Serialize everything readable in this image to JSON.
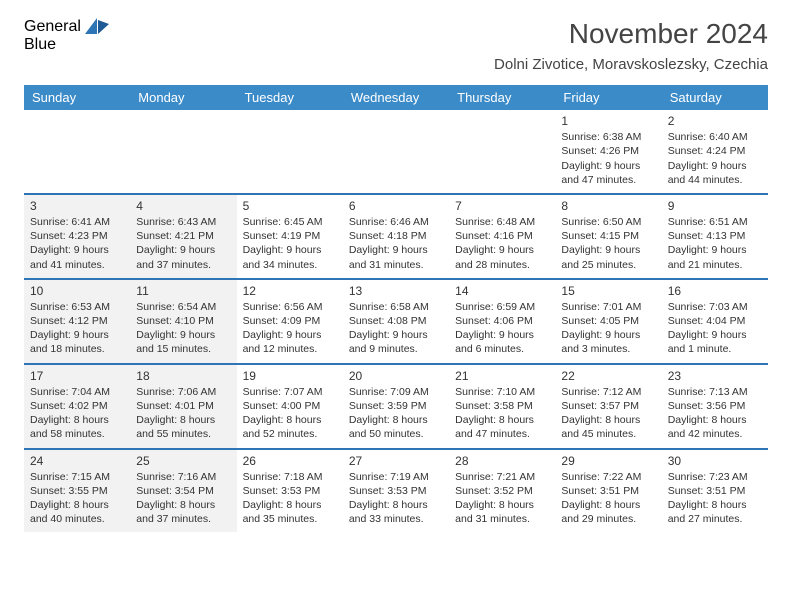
{
  "brand": {
    "line1": "General",
    "line2": "Blue"
  },
  "title": "November 2024",
  "location": "Dolni Zivotice, Moravskoslezsky, Czechia",
  "colors": {
    "header_bg": "#3b8bc9",
    "divider": "#2e75b6",
    "shade": "#f2f2f2",
    "text": "#333333",
    "brand_gray": "#555555",
    "brand_blue": "#2e75b6"
  },
  "weekdays": [
    "Sunday",
    "Monday",
    "Tuesday",
    "Wednesday",
    "Thursday",
    "Friday",
    "Saturday"
  ],
  "shaded_columns": [
    0,
    1
  ],
  "weeks": [
    [
      null,
      null,
      null,
      null,
      null,
      {
        "n": "1",
        "sunrise": "Sunrise: 6:38 AM",
        "sunset": "Sunset: 4:26 PM",
        "daylight": "Daylight: 9 hours and 47 minutes."
      },
      {
        "n": "2",
        "sunrise": "Sunrise: 6:40 AM",
        "sunset": "Sunset: 4:24 PM",
        "daylight": "Daylight: 9 hours and 44 minutes."
      }
    ],
    [
      {
        "n": "3",
        "sunrise": "Sunrise: 6:41 AM",
        "sunset": "Sunset: 4:23 PM",
        "daylight": "Daylight: 9 hours and 41 minutes."
      },
      {
        "n": "4",
        "sunrise": "Sunrise: 6:43 AM",
        "sunset": "Sunset: 4:21 PM",
        "daylight": "Daylight: 9 hours and 37 minutes."
      },
      {
        "n": "5",
        "sunrise": "Sunrise: 6:45 AM",
        "sunset": "Sunset: 4:19 PM",
        "daylight": "Daylight: 9 hours and 34 minutes."
      },
      {
        "n": "6",
        "sunrise": "Sunrise: 6:46 AM",
        "sunset": "Sunset: 4:18 PM",
        "daylight": "Daylight: 9 hours and 31 minutes."
      },
      {
        "n": "7",
        "sunrise": "Sunrise: 6:48 AM",
        "sunset": "Sunset: 4:16 PM",
        "daylight": "Daylight: 9 hours and 28 minutes."
      },
      {
        "n": "8",
        "sunrise": "Sunrise: 6:50 AM",
        "sunset": "Sunset: 4:15 PM",
        "daylight": "Daylight: 9 hours and 25 minutes."
      },
      {
        "n": "9",
        "sunrise": "Sunrise: 6:51 AM",
        "sunset": "Sunset: 4:13 PM",
        "daylight": "Daylight: 9 hours and 21 minutes."
      }
    ],
    [
      {
        "n": "10",
        "sunrise": "Sunrise: 6:53 AM",
        "sunset": "Sunset: 4:12 PM",
        "daylight": "Daylight: 9 hours and 18 minutes."
      },
      {
        "n": "11",
        "sunrise": "Sunrise: 6:54 AM",
        "sunset": "Sunset: 4:10 PM",
        "daylight": "Daylight: 9 hours and 15 minutes."
      },
      {
        "n": "12",
        "sunrise": "Sunrise: 6:56 AM",
        "sunset": "Sunset: 4:09 PM",
        "daylight": "Daylight: 9 hours and 12 minutes."
      },
      {
        "n": "13",
        "sunrise": "Sunrise: 6:58 AM",
        "sunset": "Sunset: 4:08 PM",
        "daylight": "Daylight: 9 hours and 9 minutes."
      },
      {
        "n": "14",
        "sunrise": "Sunrise: 6:59 AM",
        "sunset": "Sunset: 4:06 PM",
        "daylight": "Daylight: 9 hours and 6 minutes."
      },
      {
        "n": "15",
        "sunrise": "Sunrise: 7:01 AM",
        "sunset": "Sunset: 4:05 PM",
        "daylight": "Daylight: 9 hours and 3 minutes."
      },
      {
        "n": "16",
        "sunrise": "Sunrise: 7:03 AM",
        "sunset": "Sunset: 4:04 PM",
        "daylight": "Daylight: 9 hours and 1 minute."
      }
    ],
    [
      {
        "n": "17",
        "sunrise": "Sunrise: 7:04 AM",
        "sunset": "Sunset: 4:02 PM",
        "daylight": "Daylight: 8 hours and 58 minutes."
      },
      {
        "n": "18",
        "sunrise": "Sunrise: 7:06 AM",
        "sunset": "Sunset: 4:01 PM",
        "daylight": "Daylight: 8 hours and 55 minutes."
      },
      {
        "n": "19",
        "sunrise": "Sunrise: 7:07 AM",
        "sunset": "Sunset: 4:00 PM",
        "daylight": "Daylight: 8 hours and 52 minutes."
      },
      {
        "n": "20",
        "sunrise": "Sunrise: 7:09 AM",
        "sunset": "Sunset: 3:59 PM",
        "daylight": "Daylight: 8 hours and 50 minutes."
      },
      {
        "n": "21",
        "sunrise": "Sunrise: 7:10 AM",
        "sunset": "Sunset: 3:58 PM",
        "daylight": "Daylight: 8 hours and 47 minutes."
      },
      {
        "n": "22",
        "sunrise": "Sunrise: 7:12 AM",
        "sunset": "Sunset: 3:57 PM",
        "daylight": "Daylight: 8 hours and 45 minutes."
      },
      {
        "n": "23",
        "sunrise": "Sunrise: 7:13 AM",
        "sunset": "Sunset: 3:56 PM",
        "daylight": "Daylight: 8 hours and 42 minutes."
      }
    ],
    [
      {
        "n": "24",
        "sunrise": "Sunrise: 7:15 AM",
        "sunset": "Sunset: 3:55 PM",
        "daylight": "Daylight: 8 hours and 40 minutes."
      },
      {
        "n": "25",
        "sunrise": "Sunrise: 7:16 AM",
        "sunset": "Sunset: 3:54 PM",
        "daylight": "Daylight: 8 hours and 37 minutes."
      },
      {
        "n": "26",
        "sunrise": "Sunrise: 7:18 AM",
        "sunset": "Sunset: 3:53 PM",
        "daylight": "Daylight: 8 hours and 35 minutes."
      },
      {
        "n": "27",
        "sunrise": "Sunrise: 7:19 AM",
        "sunset": "Sunset: 3:53 PM",
        "daylight": "Daylight: 8 hours and 33 minutes."
      },
      {
        "n": "28",
        "sunrise": "Sunrise: 7:21 AM",
        "sunset": "Sunset: 3:52 PM",
        "daylight": "Daylight: 8 hours and 31 minutes."
      },
      {
        "n": "29",
        "sunrise": "Sunrise: 7:22 AM",
        "sunset": "Sunset: 3:51 PM",
        "daylight": "Daylight: 8 hours and 29 minutes."
      },
      {
        "n": "30",
        "sunrise": "Sunrise: 7:23 AM",
        "sunset": "Sunset: 3:51 PM",
        "daylight": "Daylight: 8 hours and 27 minutes."
      }
    ]
  ]
}
